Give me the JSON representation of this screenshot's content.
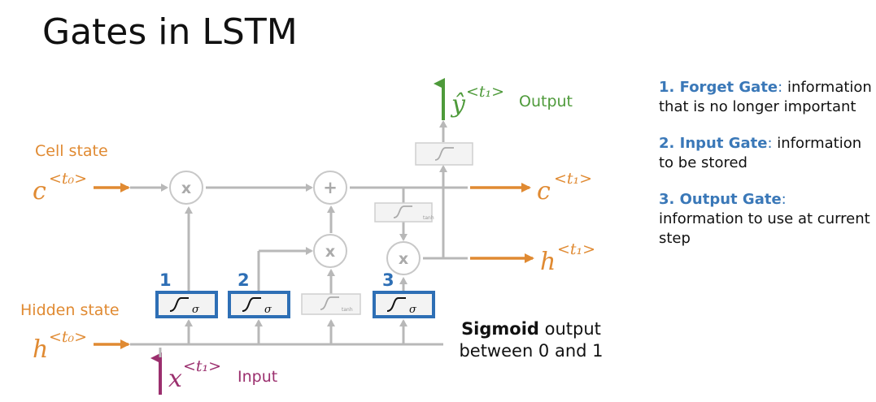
{
  "title": "Gates in LSTM",
  "labels": {
    "cell_state": "Cell state",
    "hidden_state": "Hidden state",
    "input": "Input",
    "output": "Output",
    "c_prev": "c",
    "c_prev_sup": "<t₀>",
    "h_prev": "h",
    "h_prev_sup": "<t₀>",
    "c_next": "c",
    "c_next_sup": "<t₁>",
    "h_next": "h",
    "h_next_sup": "<t₁>",
    "x_in": "x",
    "x_in_sup": "<t₁>",
    "y_out": "ŷ",
    "y_out_sup": "<t₁>"
  },
  "gates_numbers": [
    "1",
    "2",
    "3"
  ],
  "ops": {
    "mult": "x",
    "add": "+",
    "sigma": "σ",
    "tanh": "tanh"
  },
  "gate_list": [
    {
      "name": "1. Forget Gate",
      "sep": ":",
      "desc": " information that is no longer important"
    },
    {
      "name": "2. Input Gate",
      "sep": ":",
      "desc": " information to be stored"
    },
    {
      "name": "3. Output Gate",
      "sep": ":",
      "desc": " information to use at current step"
    }
  ],
  "sigmoid_note": {
    "bold": "Sigmoid",
    "rest": " output between 0 and 1"
  },
  "colors": {
    "orange": "#e08a32",
    "blue": "#2e6fb5",
    "green": "#4e9a3a",
    "purple": "#9b2f6e",
    "gray": "#b8b8b8",
    "text_blue": "#3a78b8"
  }
}
